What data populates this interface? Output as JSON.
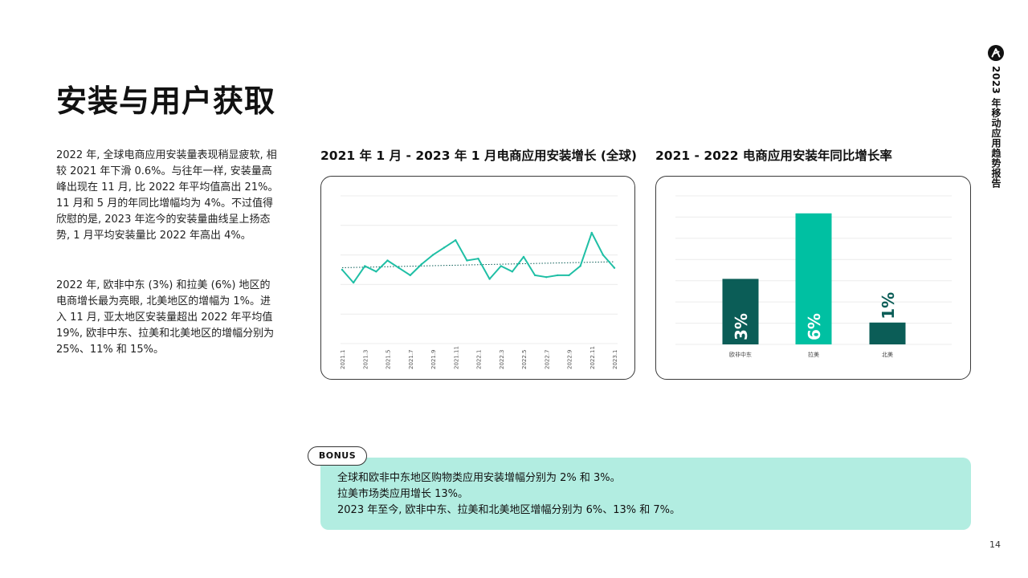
{
  "page": {
    "title": "安装与用户获取",
    "paragraph1": "2022 年, 全球电商应用安装量表现稍显疲软, 相较 2021 年下滑 0.6%。与往年一样, 安装量高峰出现在 11 月, 比 2022 年平均值高出 21%。11 月和 5 月的年同比增幅均为 4%。不过值得欣慰的是, 2023 年迄今的安装量曲线呈上扬态势, 1 月平均安装量比 2022 年高出 4%。",
    "paragraph2": "2022 年, 欧非中东 (3%) 和拉美 (6%) 地区的电商增长最为亮眼, 北美地区的增幅为 1%。进入 11 月, 亚太地区安装量超出 2022 年平均值 19%, 欧非中东、拉美和北美地区的增幅分别为 25%、11% 和 15%。",
    "page_number": "14"
  },
  "brand": {
    "report_title": "2023 年移动应用趋势报告",
    "logo_icon": "adjust-logo-icon"
  },
  "bonus": {
    "badge": "BONUS",
    "lines": [
      "全球和欧非中东地区购物类应用安装增幅分别为 2% 和 3%。",
      "拉美市场类应用增长 13%。",
      "2023 年至今, 欧非中东、拉美和北美地区增幅分别为 6%、13% 和 7%。"
    ]
  },
  "colors": {
    "line": "#1fbfa5",
    "trend": "#0b5d57",
    "bar_dark": "#0b5d57",
    "bar_bright": "#00c0a2",
    "bonus_bg": "#b2ede1"
  },
  "chart_data": [
    {
      "type": "line",
      "title": "2021 年 1 月 - 2023 年 1 月电商应用安装增长 (全球)",
      "x": [
        "2021.1",
        "2021.2",
        "2021.3",
        "2021.4",
        "2021.5",
        "2021.6",
        "2021.7",
        "2021.8",
        "2021.9",
        "2021.10",
        "2021.11",
        "2021.12",
        "2022.1",
        "2022.2",
        "2022.3",
        "2022.4",
        "2022.5",
        "2022.6",
        "2022.7",
        "2022.8",
        "2022.9",
        "2022.10",
        "2022.11",
        "2022.12",
        "2023.1"
      ],
      "x_tick_labels": [
        "2021.1",
        "2021.3",
        "2021.5",
        "2021.7",
        "2021.9",
        "2021.11",
        "2022.1",
        "2022.3",
        "2022.5",
        "2022.7",
        "2022.9",
        "2022.11",
        "2023.1"
      ],
      "series": [
        {
          "values": [
            100,
            96.5,
            101,
            99.5,
            102.5,
            100.5,
            98.5,
            101.5,
            104,
            106,
            108,
            102.5,
            103,
            97.5,
            101,
            99.5,
            103.5,
            98.5,
            98,
            98.5,
            98.5,
            101,
            110,
            104,
            100.5
          ]
        }
      ],
      "trendline": true,
      "ylim": [
        80,
        120
      ],
      "grid": true,
      "y_tick_labels_shown": false
    },
    {
      "type": "bar",
      "title": "2021 - 2022 电商应用安装年同比增长率",
      "categories": [
        "欧非中东",
        "拉美",
        "北美"
      ],
      "values": [
        3,
        6,
        1
      ],
      "value_labels": [
        "3%",
        "6%",
        "1%"
      ],
      "ylim": [
        0,
        6.8
      ],
      "grid": true
    }
  ]
}
